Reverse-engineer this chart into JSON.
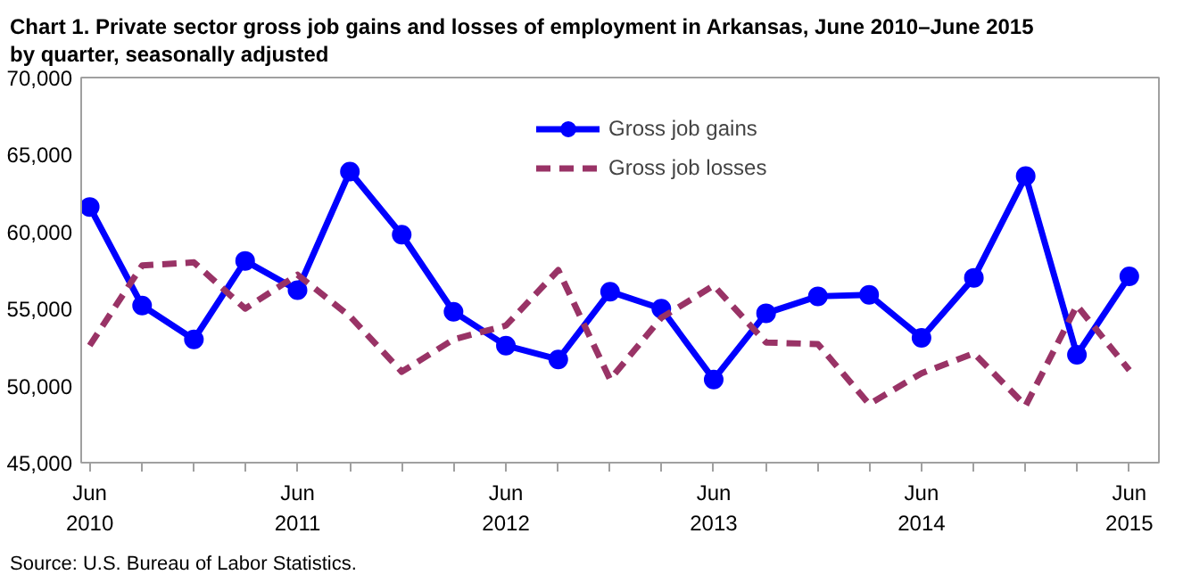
{
  "chart_data": {
    "type": "line",
    "title": "Chart 1. Private sector gross job gains and losses of employment in Arkansas, June 2010–June 2015 by quarter, seasonally adjusted",
    "annotations": [
      "Source: U.S. Bureau of Labor Statistics."
    ],
    "x": [
      "2010-06",
      "2010-09",
      "2010-12",
      "2011-03",
      "2011-06",
      "2011-09",
      "2011-12",
      "2012-03",
      "2012-06",
      "2012-09",
      "2012-12",
      "2013-03",
      "2013-06",
      "2013-09",
      "2013-12",
      "2014-03",
      "2014-06",
      "2014-09",
      "2014-12",
      "2015-03",
      "2015-06"
    ],
    "series": [
      {
        "name": "Gross job gains",
        "color": "#0000ff",
        "marker": "circle",
        "line_style": "solid",
        "values": [
          61600,
          55200,
          53000,
          58100,
          56200,
          63900,
          59800,
          54800,
          52600,
          51700,
          56100,
          55000,
          50400,
          54700,
          55800,
          55900,
          53100,
          57000,
          63600,
          52000,
          57100
        ]
      },
      {
        "name": "Gross job losses",
        "color": "#993366",
        "marker": "none",
        "line_style": "dashed",
        "values": [
          52600,
          57800,
          58000,
          55000,
          57200,
          54500,
          50900,
          53000,
          53900,
          57500,
          50400,
          54400,
          56500,
          52800,
          52700,
          48800,
          50800,
          52100,
          48700,
          55200,
          51000
        ]
      }
    ],
    "xlim": [
      "2010-05-17",
      "2015-07-23"
    ],
    "xticks": [
      {
        "value": "2010-06",
        "label": "Jun\n2010"
      },
      {
        "value": "2010-09",
        "label": null
      },
      {
        "value": "2010-12",
        "label": null
      },
      {
        "value": "2011-03",
        "label": null
      },
      {
        "value": "2011-06",
        "label": "Jun\n2011"
      },
      {
        "value": "2011-09",
        "label": null
      },
      {
        "value": "2011-12",
        "label": null
      },
      {
        "value": "2012-03",
        "label": null
      },
      {
        "value": "2012-06",
        "label": "Jun\n2012"
      },
      {
        "value": "2012-09",
        "label": null
      },
      {
        "value": "2012-12",
        "label": null
      },
      {
        "value": "2013-03",
        "label": null
      },
      {
        "value": "2013-06",
        "label": "Jun\n2013"
      },
      {
        "value": "2013-09",
        "label": null
      },
      {
        "value": "2013-12",
        "label": null
      },
      {
        "value": "2014-03",
        "label": null
      },
      {
        "value": "2014-06",
        "label": "Jun\n2014"
      },
      {
        "value": "2014-09",
        "label": null
      },
      {
        "value": "2014-12",
        "label": null
      },
      {
        "value": "2015-03",
        "label": null
      },
      {
        "value": "2015-06",
        "label": "Jun\n2015"
      }
    ],
    "ylim": [
      45000,
      70000
    ],
    "yticks": [
      {
        "value": 45000,
        "label": "45,000"
      },
      {
        "value": 50000,
        "label": "50,000"
      },
      {
        "value": 55000,
        "label": "55,000"
      },
      {
        "value": 60000,
        "label": "60,000"
      },
      {
        "value": 65000,
        "label": "65,000"
      },
      {
        "value": 70000,
        "label": "70,000"
      }
    ],
    "grid": false,
    "legend": "top right"
  }
}
